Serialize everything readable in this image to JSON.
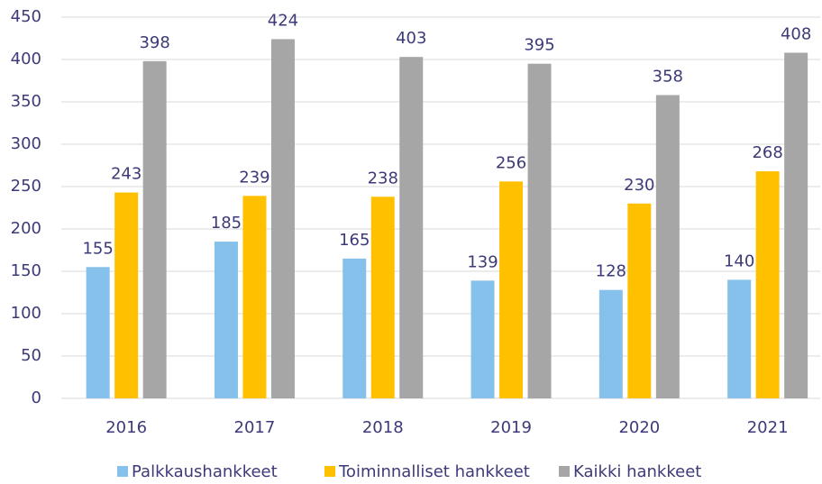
{
  "chart_data": {
    "type": "bar",
    "categories": [
      "2016",
      "2017",
      "2018",
      "2019",
      "2020",
      "2021"
    ],
    "series": [
      {
        "name": "Palkkaushankkeet",
        "color": "#85c1ea",
        "values": [
          155,
          185,
          165,
          139,
          128,
          140
        ]
      },
      {
        "name": "Toiminnalliset hankkeet",
        "color": "#ffc000",
        "values": [
          243,
          239,
          238,
          256,
          230,
          268
        ]
      },
      {
        "name": "Kaikki hankkeet",
        "color": "#a6a6a6",
        "values": [
          398,
          424,
          403,
          395,
          358,
          408
        ]
      }
    ],
    "ylim": [
      0,
      450
    ],
    "yticks": [
      0,
      50,
      100,
      150,
      200,
      250,
      300,
      350,
      400,
      450
    ],
    "grid": true,
    "legend": "bottom"
  }
}
